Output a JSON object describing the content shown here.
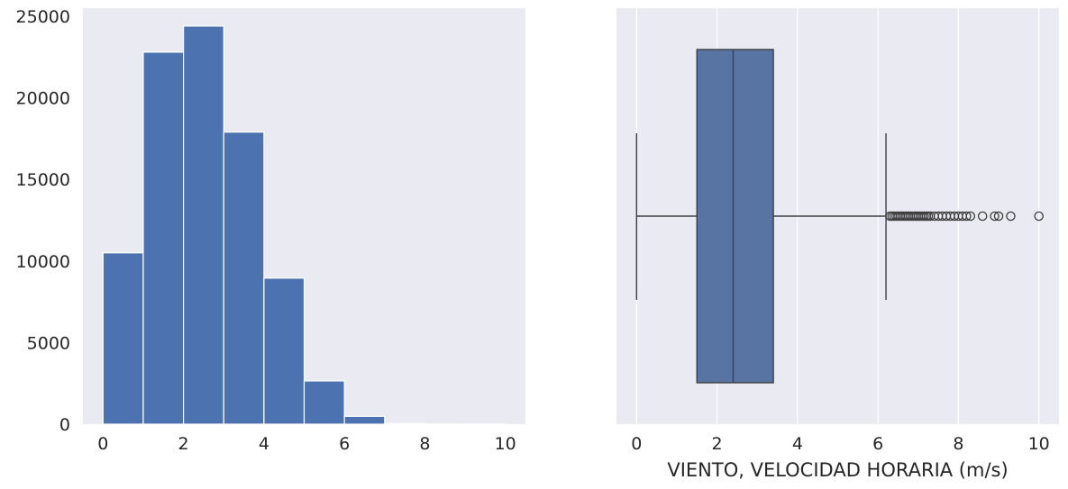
{
  "chart_data": [
    {
      "type": "bar",
      "subtype": "histogram",
      "bins": [
        {
          "x0": 0,
          "x1": 1,
          "count": 10500
        },
        {
          "x0": 1,
          "x1": 2,
          "count": 22800
        },
        {
          "x0": 2,
          "x1": 3,
          "count": 24400
        },
        {
          "x0": 3,
          "x1": 4,
          "count": 17900
        },
        {
          "x0": 4,
          "x1": 5,
          "count": 8950
        },
        {
          "x0": 5,
          "x1": 6,
          "count": 2650
        },
        {
          "x0": 6,
          "x1": 7,
          "count": 480
        },
        {
          "x0": 7,
          "x1": 8,
          "count": 40
        },
        {
          "x0": 8,
          "x1": 9,
          "count": 8
        },
        {
          "x0": 9,
          "x1": 10,
          "count": 3
        }
      ],
      "xlim": [
        -0.5,
        10.5
      ],
      "ylim": [
        0,
        25500
      ],
      "xticks": [
        "0",
        "2",
        "4",
        "6",
        "8",
        "10"
      ],
      "yticks": [
        "0",
        "5000",
        "10000",
        "15000",
        "20000",
        "25000"
      ],
      "xlabel": "",
      "ylabel": "",
      "grid": false,
      "colors": {
        "bar": "#4c72b0",
        "bar_edge": "#ffffff",
        "background": "#eaeaf2"
      }
    },
    {
      "type": "box",
      "orientation": "horizontal",
      "whisker_low": 0,
      "q1": 1.5,
      "median": 2.4,
      "q3": 3.4,
      "whisker_high": 6.2,
      "outliers": [
        6.3,
        6.35,
        6.4,
        6.45,
        6.5,
        6.55,
        6.6,
        6.65,
        6.7,
        6.75,
        6.8,
        6.85,
        6.9,
        6.95,
        7.0,
        7.05,
        7.1,
        7.15,
        7.2,
        7.25,
        7.3,
        7.4,
        7.5,
        7.6,
        7.7,
        7.8,
        7.9,
        8.0,
        8.1,
        8.2,
        8.3,
        8.6,
        8.9,
        9.0,
        9.3,
        10.0
      ],
      "xlim": [
        -0.5,
        10.5
      ],
      "xticks": [
        "0",
        "2",
        "4",
        "6",
        "8",
        "10"
      ],
      "xlabel": "VIENTO, VELOCIDAD HORARIA (m/s)",
      "ylabel": "",
      "grid": "vertical",
      "colors": {
        "box": "#5874a3",
        "line": "#3f3f3f",
        "background": "#eaeaf2",
        "grid": "#ffffff"
      }
    }
  ]
}
